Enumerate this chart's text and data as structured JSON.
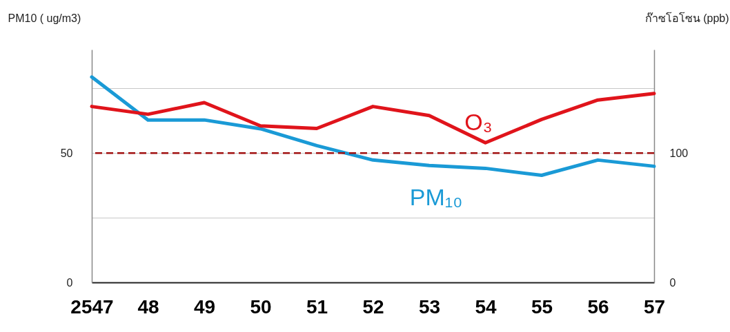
{
  "chart_data": {
    "type": "line",
    "ylabel": "PM10 ( ug/m3)",
    "y2label": "ก๊าซโอโซน (ppb)",
    "categories": [
      "2547",
      "48",
      "49",
      "50",
      "51",
      "52",
      "53",
      "54",
      "55",
      "56",
      "57"
    ],
    "series": [
      {
        "name": "PM₁₀",
        "color": "#1a9ad6",
        "values": [
          79.4,
          62.8,
          62.8,
          59.4,
          52.9,
          47.3,
          45.2,
          44.1,
          41.4,
          47.3,
          44.9
        ]
      },
      {
        "name": "O₃",
        "color": "#e0141b",
        "axis": "y2",
        "values": [
          136,
          130,
          139,
          121,
          119,
          136,
          129,
          108,
          126,
          141,
          146
        ]
      }
    ],
    "ylim": [
      0,
      90
    ],
    "yticks": [
      0,
      {
        "value": 25,
        "label": null
      },
      50,
      {
        "value": 75,
        "label": null
      }
    ],
    "y2lim": [
      0,
      180
    ],
    "y2ticks": [
      0,
      100
    ],
    "grid": "y",
    "ref_lines": [
      {
        "axis": "y2",
        "value": 100,
        "label": null,
        "color": "#a01010",
        "line_style": "dashed"
      }
    ]
  }
}
